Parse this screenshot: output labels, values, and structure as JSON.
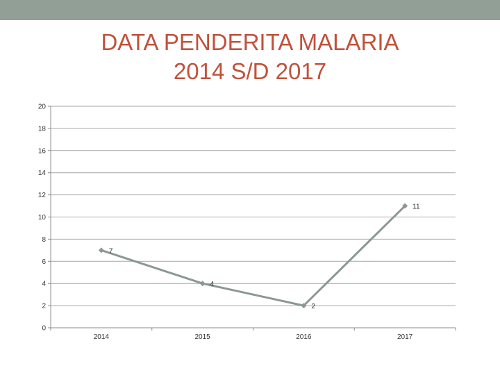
{
  "colors": {
    "top_bar": "#929f96",
    "title": "#c0523c",
    "series_line": "#8b9893",
    "gridline": "#a6a6a6",
    "axis": "#8c8c8c",
    "text": "#333333"
  },
  "chart_data": {
    "type": "line",
    "title": "DATA PENDERITA MALARIA 2014 S/D 2017",
    "title_lines": [
      "DATA PENDERITA MALARIA",
      "2014 S/D 2017"
    ],
    "categories": [
      "2014",
      "2015",
      "2016",
      "2017"
    ],
    "series": [
      {
        "values": [
          7,
          4,
          2,
          11
        ],
        "marker": "diamond",
        "data_labels": true
      }
    ],
    "ylim": [
      0,
      20
    ],
    "yticks": [
      0,
      2,
      4,
      6,
      8,
      10,
      12,
      14,
      16,
      18,
      20
    ],
    "grid": true,
    "legend": "none"
  }
}
